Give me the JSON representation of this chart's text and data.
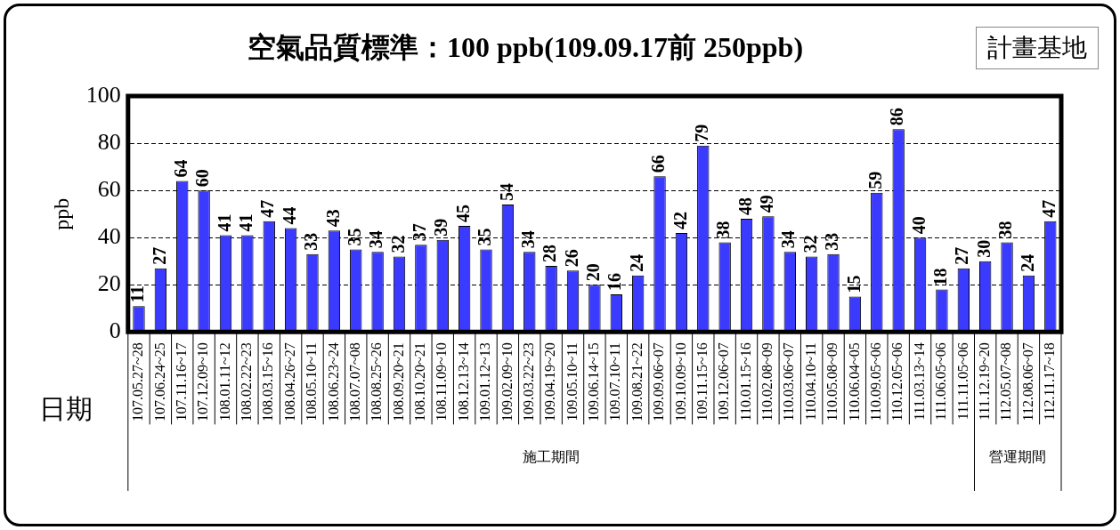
{
  "chart_data": {
    "type": "bar",
    "title": "空氣品質標準：100 ppb(109.09.17前 250ppb)",
    "ylabel": "ppb",
    "xlabel": "日期",
    "annotations": [
      "計畫基地",
      "施工期間",
      "營運期間"
    ],
    "categories": [
      "107.05.27~28",
      "107.06.24~25",
      "107.11.16~17",
      "107.12.09~10",
      "108.01.11~12",
      "108.02.22~23",
      "108.03.15~16",
      "108.04.26~27",
      "108.05.10~11",
      "108.06.23~24",
      "108.07.07~08",
      "108.08.25~26",
      "108.09.20~21",
      "108.10.20~21",
      "108.11.09~10",
      "108.12.13~14",
      "109.01.12~13",
      "109.02.09~10",
      "109.03.22~23",
      "109.04.19~20",
      "109.05.10~11",
      "109.06.14~15",
      "109.07.10~11",
      "109.08.21~22",
      "109.09.06~07",
      "109.10.09~10",
      "109.11.15~16",
      "109.12.06~07",
      "110.01.15~16",
      "110.02.08~09",
      "110.03.06~07",
      "110.04.10~11",
      "110.05.08~09",
      "110.06.04~05",
      "110.09.05~06",
      "110.12.05~06",
      "111.03.13~14",
      "111.06.05~06",
      "111.11.05~06",
      "111.12.19~20",
      "112.05.07~08",
      "112.08.06~07",
      "112.11.17~18"
    ],
    "values": [
      11,
      27,
      64,
      60,
      41,
      41,
      47,
      44,
      33,
      43,
      35,
      34,
      32,
      37,
      39,
      45,
      35,
      54,
      34,
      28,
      26,
      20,
      16,
      24,
      66,
      42,
      79,
      38,
      48,
      49,
      34,
      32,
      33,
      15,
      59,
      86,
      40,
      18,
      27,
      30,
      38,
      24,
      47
    ],
    "color": "#3b3bff",
    "data_labels": true,
    "ylim": [
      0,
      100
    ],
    "yticks": [
      0,
      20,
      40,
      60,
      80,
      100
    ],
    "grid": "y",
    "legend": false
  }
}
